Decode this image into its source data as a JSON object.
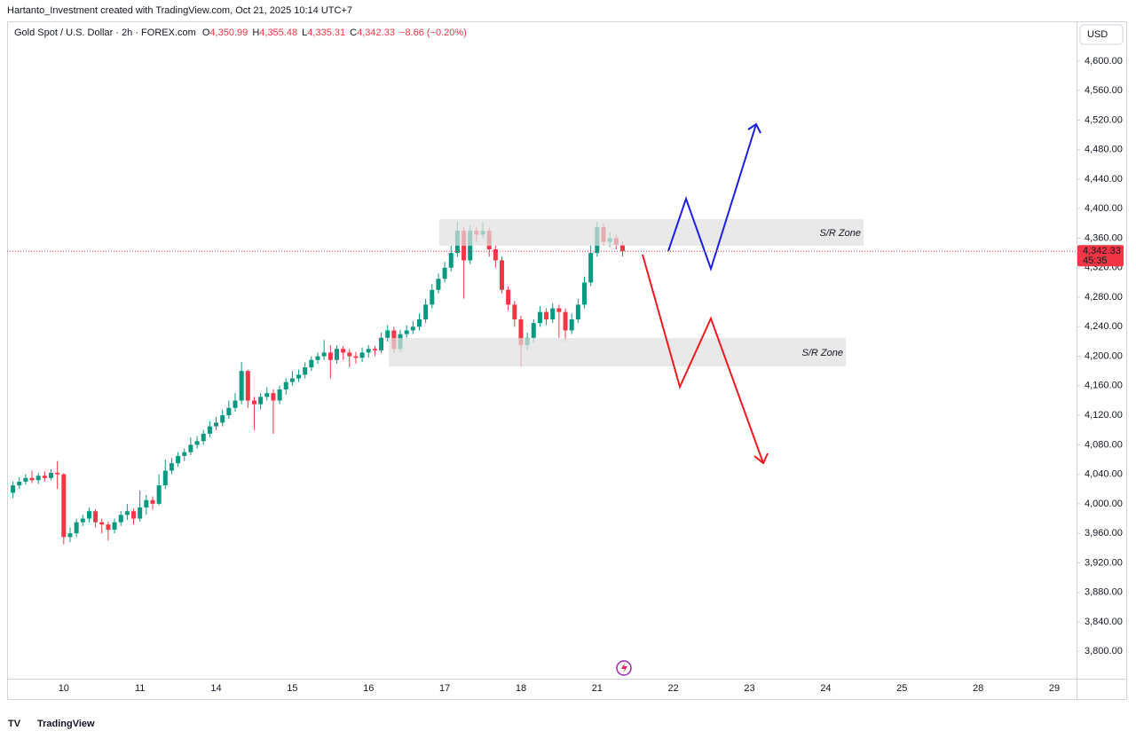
{
  "chart_data": {
    "type": "candlestick",
    "header": "Hartanto_Investment created with TradingView.com, Oct 21, 2025 10:14 UTC+7",
    "title": "Gold Spot / U.S. Dollar · 2h · FOREX.com",
    "ohlc_legend": [
      {
        "key": "O",
        "value": "4,350.99"
      },
      {
        "key": "H",
        "value": "4,355.48"
      },
      {
        "key": "L",
        "value": "4,335.31"
      },
      {
        "key": "C",
        "value": "4,342.33"
      }
    ],
    "change": "−8.66 (−0.20%)",
    "currency": "USD",
    "last_price": {
      "value": 4342.33,
      "label": "4,342.33"
    },
    "countdown": "45:35",
    "annotations": [
      "S/R Zone",
      "S/R Zone"
    ],
    "brand": "TradingView",
    "up_color": "#089981",
    "down_color": "#f23645",
    "grid": false,
    "ylim": [
      3763,
      4654
    ],
    "yticks": [
      {
        "value": 3800,
        "label": "3,800.00"
      },
      {
        "value": 3840,
        "label": "3,840.00"
      },
      {
        "value": 3880,
        "label": "3,880.00"
      },
      {
        "value": 3920,
        "label": "3,920.00"
      },
      {
        "value": 3960,
        "label": "3,960.00"
      },
      {
        "value": 4000,
        "label": "4,000.00"
      },
      {
        "value": 4040,
        "label": "4,040.00"
      },
      {
        "value": 4080,
        "label": "4,080.00"
      },
      {
        "value": 4120,
        "label": "4,120.00"
      },
      {
        "value": 4160,
        "label": "4,160.00"
      },
      {
        "value": 4200,
        "label": "4,200.00"
      },
      {
        "value": 4240,
        "label": "4,240.00"
      },
      {
        "value": 4280,
        "label": "4,280.00"
      },
      {
        "value": 4320,
        "label": "4,320.00"
      },
      {
        "value": 4360,
        "label": "4,360.00"
      },
      {
        "value": 4400,
        "label": "4,400.00"
      },
      {
        "value": 4440,
        "label": "4,440.00"
      },
      {
        "value": 4480,
        "label": "4,480.00"
      },
      {
        "value": 4520,
        "label": "4,520.00"
      },
      {
        "value": 4560,
        "label": "4,560.00"
      },
      {
        "value": 4600,
        "label": "4,600.00"
      }
    ],
    "categories": [
      null,
      null,
      null,
      null,
      null,
      null,
      null,
      null,
      "10",
      null,
      null,
      null,
      null,
      null,
      null,
      null,
      null,
      null,
      null,
      null,
      "11",
      null,
      null,
      null,
      null,
      null,
      null,
      null,
      null,
      null,
      null,
      null,
      "14",
      null,
      null,
      null,
      null,
      null,
      null,
      null,
      null,
      null,
      null,
      null,
      "15",
      null,
      null,
      null,
      null,
      null,
      null,
      null,
      null,
      null,
      null,
      null,
      "16",
      null,
      null,
      null,
      null,
      null,
      null,
      null,
      null,
      null,
      null,
      null,
      "17",
      null,
      null,
      null,
      null,
      null,
      null,
      null,
      null,
      null,
      null,
      null,
      "18",
      null,
      null,
      null,
      null,
      null,
      null,
      null,
      null,
      null,
      null,
      null,
      "21",
      null,
      null,
      null,
      null,
      null,
      null,
      null,
      null,
      null,
      null,
      null,
      "22",
      null,
      null,
      null,
      null,
      null,
      null,
      null,
      null,
      null,
      null,
      null,
      "23",
      null,
      null,
      null,
      null,
      null,
      null,
      null,
      null,
      null,
      null,
      null,
      "24",
      null,
      null,
      null,
      null,
      null,
      null,
      null,
      null,
      null,
      null,
      null,
      "25",
      null,
      null,
      null,
      null,
      null,
      null,
      null,
      null,
      null,
      null,
      null,
      "28",
      null,
      null,
      null,
      null,
      null,
      null,
      null,
      null,
      null,
      null,
      null,
      "29",
      null,
      null,
      null
    ],
    "open": [
      4015,
      4025,
      4030,
      4035,
      4032,
      4038,
      4035,
      4042,
      4040,
      3955,
      3960,
      3975,
      3980,
      3990,
      3975,
      3972,
      3965,
      3975,
      3985,
      3990,
      3980,
      3995,
      4005,
      4000,
      4025,
      4045,
      4055,
      4065,
      4070,
      4080,
      4085,
      4095,
      4105,
      4110,
      4120,
      4130,
      4140,
      4180,
      4140,
      4135,
      4145,
      4150,
      4140,
      4155,
      4165,
      4170,
      4175,
      4185,
      4195,
      4200,
      4205,
      4195,
      4210,
      4205,
      4200,
      4198,
      4205,
      4210,
      4208,
      4225,
      4235,
      4210,
      4230,
      4235,
      4240,
      4250,
      4270,
      4290,
      4305,
      4320,
      4340,
      4370,
      4330,
      4370,
      4365,
      4370,
      4345,
      4330,
      4290,
      4270,
      4250,
      4215,
      4225,
      4245,
      4260,
      4250,
      4265,
      4260,
      4235,
      4250,
      4270,
      4300,
      4340,
      4375,
      4355,
      4360,
      4350.99,
      null,
      null,
      null,
      null,
      null,
      null,
      null,
      null,
      null,
      null,
      null,
      null,
      null,
      null,
      null,
      null,
      null,
      null,
      null,
      null,
      null,
      null,
      null,
      null,
      null,
      null,
      null,
      null,
      null,
      null,
      null,
      null,
      null,
      null,
      null,
      null,
      null,
      null,
      null,
      null,
      null,
      null,
      null,
      null,
      null,
      null,
      null,
      null,
      null,
      null,
      null,
      null,
      null,
      null,
      null,
      null,
      null,
      null,
      null,
      null,
      null,
      null,
      null,
      null,
      null,
      null,
      null,
      null,
      null,
      null,
      null
    ],
    "high": [
      4030,
      4036,
      4040,
      4045,
      4042,
      4044,
      4047,
      4058,
      4042,
      3968,
      3980,
      3985,
      3995,
      3993,
      3980,
      3976,
      3980,
      3990,
      4000,
      3994,
      4018,
      4012,
      4010,
      4040,
      4060,
      4062,
      4070,
      4075,
      4090,
      4092,
      4100,
      4112,
      4118,
      4128,
      4140,
      4150,
      4192,
      4182,
      4145,
      4150,
      4158,
      4155,
      4160,
      4170,
      4180,
      4182,
      4192,
      4200,
      4205,
      4222,
      4215,
      4215,
      4214,
      4210,
      4206,
      4212,
      4215,
      4214,
      4232,
      4242,
      4240,
      4236,
      4242,
      4248,
      4258,
      4278,
      4298,
      4312,
      4328,
      4350,
      4382,
      4375,
      4378,
      4375,
      4382,
      4374,
      4350,
      4335,
      4295,
      4275,
      4255,
      4232,
      4250,
      4268,
      4265,
      4272,
      4270,
      4265,
      4258,
      4278,
      4308,
      4350,
      4382,
      4380,
      4368,
      4365,
      4355.48,
      null,
      null,
      null,
      null,
      null,
      null,
      null,
      null,
      null,
      null,
      null,
      null,
      null,
      null,
      null,
      null,
      null,
      null,
      null,
      null,
      null,
      null,
      null,
      null,
      null,
      null,
      null,
      null,
      null,
      null,
      null,
      null,
      null,
      null,
      null,
      null,
      null,
      null,
      null,
      null,
      null,
      null,
      null,
      null,
      null,
      null,
      null,
      null,
      null,
      null,
      null,
      null,
      null,
      null,
      null,
      null,
      null,
      null,
      null,
      null,
      null,
      null,
      null,
      null,
      null,
      null,
      null,
      null,
      null,
      null,
      null
    ],
    "low": [
      4008,
      4020,
      4026,
      4028,
      4027,
      4030,
      4032,
      4020,
      3945,
      3948,
      3955,
      3970,
      3975,
      3968,
      3960,
      3950,
      3960,
      3970,
      3978,
      3972,
      3976,
      3985,
      3992,
      3998,
      4020,
      4040,
      4050,
      4058,
      4066,
      4075,
      4080,
      4090,
      4100,
      4105,
      4115,
      4125,
      4135,
      4130,
      4100,
      4128,
      4140,
      4095,
      4135,
      4148,
      4160,
      4165,
      4170,
      4180,
      4190,
      4195,
      4170,
      4190,
      4195,
      4185,
      4190,
      4192,
      4198,
      4200,
      4204,
      4220,
      4205,
      4206,
      4225,
      4230,
      4235,
      4245,
      4265,
      4285,
      4300,
      4315,
      4335,
      4278,
      4325,
      4355,
      4360,
      4335,
      4320,
      4285,
      4262,
      4240,
      4186,
      4208,
      4218,
      4240,
      4242,
      4245,
      4225,
      4220,
      4230,
      4245,
      4265,
      4295,
      4335,
      4350,
      4348,
      4345,
      4335.31,
      null,
      null,
      null,
      null,
      null,
      null,
      null,
      null,
      null,
      null,
      null,
      null,
      null,
      null,
      null,
      null,
      null,
      null,
      null,
      null,
      null,
      null,
      null,
      null,
      null,
      null,
      null,
      null,
      null,
      null,
      null,
      null,
      null,
      null,
      null,
      null,
      null,
      null,
      null,
      null,
      null,
      null,
      null,
      null,
      null,
      null,
      null,
      null,
      null,
      null,
      null,
      null,
      null,
      null,
      null,
      null,
      null,
      null,
      null,
      null,
      null,
      null,
      null,
      null,
      null,
      null,
      null,
      null,
      null,
      null,
      null
    ],
    "close": [
      4025,
      4030,
      4035,
      4032,
      4038,
      4035,
      4042,
      4040,
      3955,
      3960,
      3975,
      3980,
      3990,
      3975,
      3972,
      3965,
      3975,
      3985,
      3990,
      3980,
      3995,
      4005,
      4000,
      4025,
      4045,
      4055,
      4065,
      4070,
      4080,
      4085,
      4095,
      4105,
      4110,
      4120,
      4130,
      4140,
      4180,
      4140,
      4135,
      4145,
      4150,
      4140,
      4155,
      4165,
      4170,
      4175,
      4185,
      4195,
      4200,
      4205,
      4195,
      4210,
      4205,
      4200,
      4198,
      4205,
      4210,
      4208,
      4225,
      4235,
      4210,
      4230,
      4235,
      4240,
      4250,
      4270,
      4290,
      4305,
      4320,
      4340,
      4370,
      4330,
      4370,
      4365,
      4370,
      4345,
      4330,
      4290,
      4270,
      4250,
      4215,
      4225,
      4245,
      4260,
      4250,
      4265,
      4260,
      4235,
      4250,
      4270,
      4300,
      4340,
      4375,
      4355,
      4360,
      4350.99,
      4342.33,
      null,
      null,
      null,
      null,
      null,
      null,
      null,
      null,
      null,
      null,
      null,
      null,
      null,
      null,
      null,
      null,
      null,
      null,
      null,
      null,
      null,
      null,
      null,
      null,
      null,
      null,
      null,
      null,
      null,
      null,
      null,
      null,
      null,
      null,
      null,
      null,
      null,
      null,
      null,
      null,
      null,
      null,
      null,
      null,
      null,
      null,
      null,
      null,
      null,
      null,
      null,
      null,
      null,
      null,
      null,
      null,
      null,
      null,
      null,
      null,
      null,
      null,
      null,
      null,
      null,
      null,
      null,
      null,
      null,
      null,
      null
    ]
  }
}
